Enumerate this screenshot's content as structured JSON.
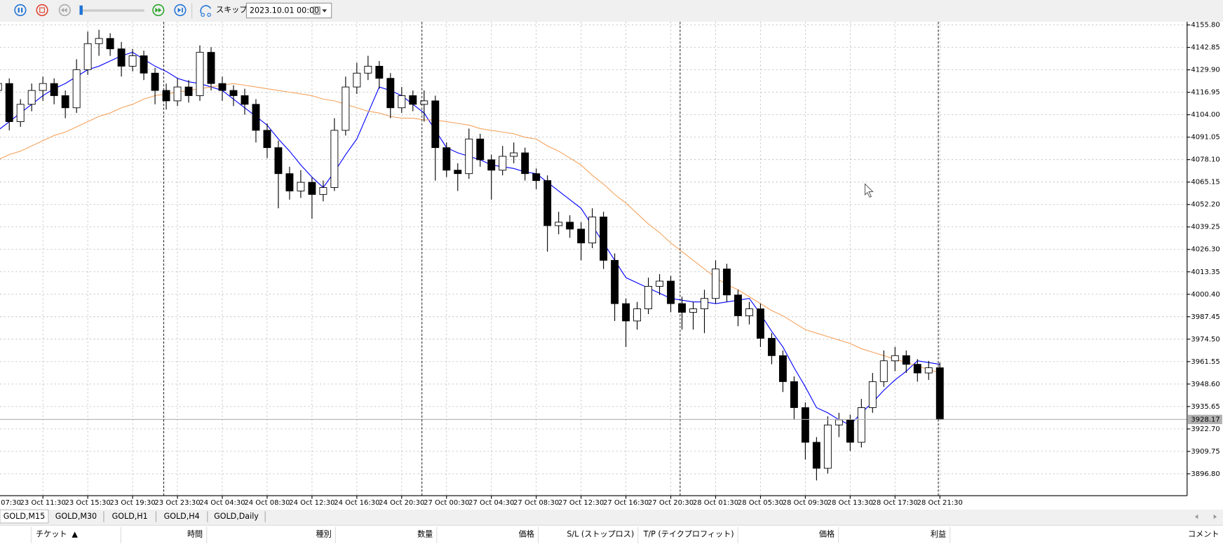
{
  "toolbar": {
    "skip": "スキップ",
    "date": "2023.10.01 00:00"
  },
  "tabs": [
    "GOLD,M15",
    "GOLD,M30",
    "GOLD,H1",
    "GOLD,H4",
    "GOLD,Daily"
  ],
  "table": {
    "headers": [
      "チケット",
      "時間",
      "種別",
      "数量",
      "価格",
      "S/L (ストップロス)",
      "T/P (テイクプロフィット)",
      "価格",
      "利益",
      "コメント"
    ],
    "sort_indicator": "▲"
  },
  "chart_data": {
    "type": "candlestick",
    "categories": [
      "07:30",
      null,
      null,
      null,
      "23 Oct 11:30",
      null,
      null,
      null,
      "23 Oct 15:30",
      null,
      null,
      null,
      "23 Oct 19:30",
      null,
      null,
      null,
      "23 Oct 23:30",
      null,
      null,
      null,
      "24 Oct 04:30",
      null,
      null,
      null,
      "24 Oct 08:30",
      null,
      null,
      null,
      "24 Oct 12:30",
      null,
      null,
      null,
      "24 Oct 16:30",
      null,
      null,
      null,
      "24 Oct 20:30",
      null,
      null,
      null,
      "27 Oct 00:30",
      null,
      null,
      null,
      "27 Oct 04:30",
      null,
      null,
      null,
      "27 Oct 08:30",
      null,
      null,
      null,
      "27 Oct 12:30",
      null,
      null,
      null,
      "27 Oct 16:30",
      null,
      null,
      null,
      "27 Oct 20:30",
      null,
      null,
      null,
      "28 Oct 01:30",
      null,
      null,
      null,
      "28 Oct 05:30",
      null,
      null,
      null,
      "28 Oct 09:30",
      null,
      null,
      null,
      "28 Oct 13:30",
      null,
      null,
      null,
      "28 Oct 17:30",
      null,
      null,
      null,
      "28 Oct 21:30"
    ],
    "ohlc": [
      [
        4118,
        4126,
        4114,
        4122
      ],
      [
        4122,
        4125,
        4095,
        4100
      ],
      [
        4100,
        4113,
        4097,
        4110
      ],
      [
        4110,
        4122,
        4106,
        4118
      ],
      [
        4118,
        4126,
        4112,
        4122
      ],
      [
        4122,
        4125,
        4110,
        4115
      ],
      [
        4115,
        4118,
        4102,
        4108
      ],
      [
        4108,
        4136,
        4105,
        4130
      ],
      [
        4130,
        4152,
        4127,
        4145
      ],
      [
        4145,
        4153,
        4138,
        4148
      ],
      [
        4148,
        4151,
        4138,
        4142
      ],
      [
        4142,
        4146,
        4126,
        4132
      ],
      [
        4132,
        4142,
        4129,
        4138
      ],
      [
        4138,
        4141,
        4124,
        4128
      ],
      [
        4128,
        4131,
        4110,
        4118
      ],
      [
        4118,
        4122,
        4107,
        4112
      ],
      [
        4112,
        4125,
        4109,
        4120
      ],
      [
        4120,
        4124,
        4111,
        4115
      ],
      [
        4115,
        4144,
        4112,
        4140
      ],
      [
        4140,
        4143,
        4118,
        4122
      ],
      [
        4122,
        4126,
        4112,
        4118
      ],
      [
        4118,
        4121,
        4109,
        4115
      ],
      [
        4115,
        4119,
        4104,
        4110
      ],
      [
        4110,
        4113,
        4088,
        4095
      ],
      [
        4095,
        4099,
        4079,
        4085
      ],
      [
        4085,
        4089,
        4050,
        4070
      ],
      [
        4070,
        4074,
        4055,
        4060
      ],
      [
        4060,
        4072,
        4056,
        4065
      ],
      [
        4065,
        4068,
        4044,
        4058
      ],
      [
        4058,
        4066,
        4054,
        4062
      ],
      [
        4062,
        4102,
        4060,
        4095
      ],
      [
        4095,
        4126,
        4092,
        4120
      ],
      [
        4120,
        4134,
        4116,
        4128
      ],
      [
        4128,
        4138,
        4124,
        4132
      ],
      [
        4132,
        4135,
        4119,
        4125
      ],
      [
        4125,
        4128,
        4102,
        4108
      ],
      [
        4108,
        4120,
        4105,
        4115
      ],
      [
        4115,
        4118,
        4106,
        4110
      ],
      [
        4110,
        4118,
        4100,
        4112
      ],
      [
        4112,
        4115,
        4066,
        4085
      ],
      [
        4085,
        4088,
        4068,
        4072
      ],
      [
        4072,
        4076,
        4060,
        4070
      ],
      [
        4070,
        4096,
        4067,
        4090
      ],
      [
        4090,
        4093,
        4074,
        4078
      ],
      [
        4078,
        4081,
        4055,
        4072
      ],
      [
        4072,
        4086,
        4069,
        4080
      ],
      [
        4080,
        4088,
        4076,
        4082
      ],
      [
        4082,
        4085,
        4066,
        4070
      ],
      [
        4070,
        4073,
        4061,
        4066
      ],
      [
        4066,
        4069,
        4025,
        4040
      ],
      [
        4040,
        4048,
        4035,
        4042
      ],
      [
        4042,
        4046,
        4033,
        4038
      ],
      [
        4038,
        4042,
        4020,
        4030
      ],
      [
        4030,
        4050,
        4027,
        4045
      ],
      [
        4045,
        4048,
        4015,
        4020
      ],
      [
        4020,
        4024,
        3985,
        3995
      ],
      [
        3995,
        3998,
        3970,
        3985
      ],
      [
        3985,
        3996,
        3980,
        3992
      ],
      [
        3992,
        4010,
        3989,
        4005
      ],
      [
        4005,
        4012,
        4000,
        4008
      ],
      [
        4008,
        4011,
        3990,
        3995
      ],
      [
        3995,
        3999,
        3980,
        3990
      ],
      [
        3990,
        3996,
        3980,
        3992
      ],
      [
        3992,
        4003,
        3978,
        3998
      ],
      [
        3998,
        4020,
        3995,
        4015
      ],
      [
        4015,
        4018,
        3996,
        4000
      ],
      [
        4000,
        4003,
        3982,
        3988
      ],
      [
        3988,
        3996,
        3983,
        3992
      ],
      [
        3992,
        3995,
        3970,
        3975
      ],
      [
        3975,
        3978,
        3960,
        3965
      ],
      [
        3965,
        3968,
        3944,
        3950
      ],
      [
        3950,
        3953,
        3928,
        3935
      ],
      [
        3935,
        3938,
        3905,
        3915
      ],
      [
        3915,
        3918,
        3893,
        3900
      ],
      [
        3900,
        3930,
        3897,
        3925
      ],
      [
        3925,
        3932,
        3918,
        3928
      ],
      [
        3928,
        3931,
        3910,
        3915
      ],
      [
        3915,
        3940,
        3912,
        3935
      ],
      [
        3935,
        3955,
        3932,
        3950
      ],
      [
        3950,
        3968,
        3947,
        3962
      ],
      [
        3962,
        3970,
        3956,
        3965
      ],
      [
        3965,
        3968,
        3955,
        3960
      ],
      [
        3960,
        3963,
        3950,
        3955
      ],
      [
        3955,
        3962,
        3951,
        3958
      ],
      [
        3958,
        3961,
        3928,
        3928.17
      ]
    ],
    "lines": [
      {
        "color": "#0000ff",
        "values": [
          4095,
          4100,
          4105,
          4110,
          4115,
          4119,
          4122,
          4126,
          4130,
          4132,
          4135,
          4138,
          4140,
          4136,
          4132,
          4129,
          4125,
          4123,
          4122,
          4120,
          4118,
          4113,
          4108,
          4103,
          4098,
          4090,
          4083,
          4075,
          4068,
          4062,
          4071,
          4081,
          4090,
          4105,
          4120,
          4118,
          4115,
          4110,
          4105,
          4095,
          4085,
          4082,
          4080,
          4078,
          4075,
          4074,
          4073,
          4071,
          4070,
          4065,
          4060,
          4055,
          4050,
          4040,
          4030,
          4020,
          4010,
          4007,
          4004,
          4001,
          3998,
          3997,
          3996,
          3996,
          3995,
          3996,
          3997,
          3998,
          3989,
          3979,
          3970,
          3958,
          3947,
          3935,
          3932,
          3928,
          3925,
          3932,
          3938,
          3945,
          3951,
          3956,
          3962,
          3961,
          3960
        ]
      },
      {
        "color": "#f4a460",
        "values": [
          4078,
          4081,
          4083,
          4086,
          4089,
          4092,
          4094,
          4097,
          4100,
          4103,
          4105,
          4108,
          4110,
          4113,
          4115,
          4116,
          4117,
          4118,
          4119,
          4120,
          4121,
          4122,
          4121,
          4120,
          4119,
          4118,
          4117,
          4116,
          4115,
          4113,
          4112,
          4110,
          4108,
          4106,
          4105,
          4103,
          4102,
          4102,
          4101,
          4101,
          4100,
          4099,
          4098,
          4096,
          4095,
          4094,
          4093,
          4091,
          4090,
          4086,
          4083,
          4079,
          4075,
          4069,
          4064,
          4058,
          4053,
          4047,
          4041,
          4036,
          4030,
          4025,
          4020,
          4015,
          4010,
          4006,
          4003,
          3999,
          3995,
          3991,
          3988,
          3984,
          3980,
          3978,
          3976,
          3974,
          3972,
          3969,
          3967,
          3965,
          3963,
          3961,
          3959,
          3957,
          3955
        ]
      }
    ],
    "last_price": 3928.17,
    "ylim": [
      3884.2,
      4157.6
    ],
    "yticks": [
      {
        "value": 4155.8,
        "label": "4155.80"
      },
      {
        "value": 4142.85,
        "label": "4142.85"
      },
      {
        "value": 4129.9,
        "label": "4129.90"
      },
      {
        "value": 4116.95,
        "label": "4116.95"
      },
      {
        "value": 4104,
        "label": "4104.00"
      },
      {
        "value": 4091.05,
        "label": "4091.05"
      },
      {
        "value": 4078.1,
        "label": "4078.10"
      },
      {
        "value": 4065.15,
        "label": "4065.15"
      },
      {
        "value": 4052.2,
        "label": "4052.20"
      },
      {
        "value": 4039.25,
        "label": "4039.25"
      },
      {
        "value": 4026.3,
        "label": "4026.30"
      },
      {
        "value": 4013.35,
        "label": "4013.35"
      },
      {
        "value": 4000.4,
        "label": "4000.40"
      },
      {
        "value": 3987.45,
        "label": "3987.45"
      },
      {
        "value": 3974.5,
        "label": "3974.50"
      },
      {
        "value": 3961.55,
        "label": "3961.55"
      },
      {
        "value": 3948.6,
        "label": "3948.60"
      },
      {
        "value": 3935.65,
        "label": "3935.65"
      },
      {
        "value": 3922.7,
        "label": "3922.70"
      },
      {
        "value": 3909.75,
        "label": "3909.75"
      },
      {
        "value": 3896.8,
        "label": "3896.80"
      }
    ],
    "grid": true,
    "bull_color": "#ffffff",
    "bear_color": "#000000"
  }
}
